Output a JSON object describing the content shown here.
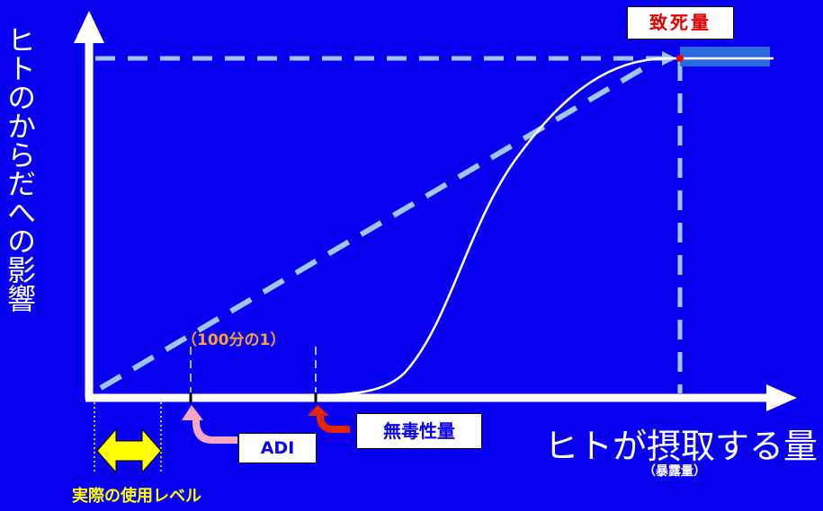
{
  "labels": {
    "y_axis": "ヒトのからだへの影響",
    "x_axis": "ヒトが摂取する量",
    "x_axis_sub": "（暴露量）",
    "lethal_dose": "致死量",
    "noael": "無毒性量",
    "adi": "ADI",
    "hundredth": "（100分の1）",
    "actual_use_level": "実際の使用レベル"
  },
  "colors": {
    "background": "#0A00F0",
    "axis": "#FFFFFF",
    "dashed_line": "#9EC6F5",
    "curve": "#FFFFFF",
    "lethal_text": "#E00000",
    "adi_arrow": "#F4A7C3",
    "noael_arrow": "#E22800",
    "range_arrow": "#FFFF00",
    "hundredth_text": "#F3A23C"
  }
}
